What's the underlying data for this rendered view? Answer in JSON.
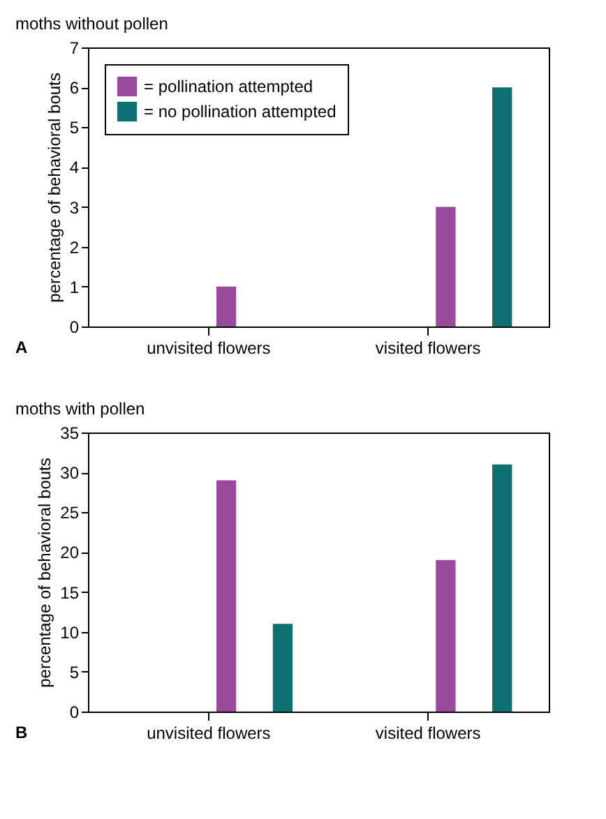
{
  "chart_data": [
    {
      "type": "bar",
      "title": "moths without pollen",
      "ylabel": "percentage of behavioral bouts",
      "categories": [
        "unvisited flowers",
        "visited flowers"
      ],
      "series": [
        {
          "name": "= pollination attempted",
          "color": "#9a4a9c",
          "values": [
            1,
            3
          ]
        },
        {
          "name": "= no pollination attempted",
          "color": "#0e7070",
          "values": [
            0,
            6
          ]
        }
      ],
      "ylim": [
        0,
        7
      ],
      "yticks": [
        0,
        1,
        2,
        3,
        4,
        5,
        6,
        7
      ],
      "grid": false,
      "legend": "top left",
      "annotations": [
        "A"
      ]
    },
    {
      "type": "bar",
      "title": "moths with pollen",
      "ylabel": "percentage of behavioral bouts",
      "categories": [
        "unvisited flowers",
        "visited flowers"
      ],
      "series": [
        {
          "color": "#9a4a9c",
          "values": [
            29,
            19
          ]
        },
        {
          "color": "#0e7070",
          "values": [
            11,
            31
          ]
        }
      ],
      "ylim": [
        0,
        35
      ],
      "yticks": [
        0,
        5,
        10,
        15,
        20,
        25,
        30,
        35
      ],
      "grid": false,
      "annotations": [
        "B"
      ]
    }
  ]
}
